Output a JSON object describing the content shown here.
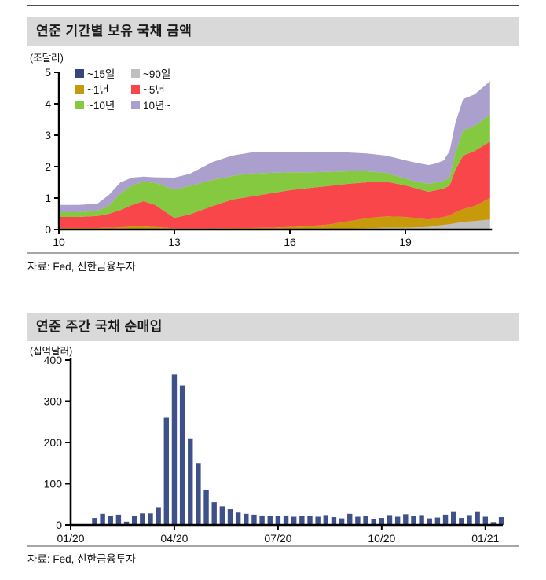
{
  "sections": [
    {
      "title": "연준 기간별 보유 국채 금액",
      "unit": "(조달러)",
      "source": "자료: Fed, 신한금융투자"
    },
    {
      "title": "연준 주간 국채 순매입",
      "unit": "(십억달러)",
      "source": "자료: Fed, 신한금융투자"
    }
  ],
  "colors": {
    "title_bar_bg": "#d9d9d9",
    "axis": "#000000",
    "divider": "#a6a6a6",
    "top_rule": "#4d4d4d"
  },
  "chart_data": [
    {
      "type": "area",
      "stacked": true,
      "title": "연준 기간별 보유 국채 금액",
      "ylabel": "조달러",
      "xlim": [
        10,
        21.25
      ],
      "ylim": [
        0,
        5
      ],
      "grid": false,
      "legend_position": "top-left",
      "xticks": [
        10,
        13,
        16,
        19
      ],
      "xtick_labels": [
        "10",
        "13",
        "16",
        "19"
      ],
      "yticks": [
        0,
        1,
        2,
        3,
        4,
        5
      ],
      "ytick_labels": [
        "0",
        "1",
        "2",
        "3",
        "4",
        "5"
      ],
      "x": [
        10,
        10.5,
        11,
        11.3,
        11.6,
        11.9,
        12.2,
        12.5,
        13,
        13.4,
        14,
        14.5,
        15,
        15.5,
        16,
        16.5,
        17,
        17.5,
        18,
        18.5,
        19,
        19.3,
        19.6,
        19.8,
        20.0,
        20.15,
        20.3,
        20.5,
        20.8,
        21.2
      ],
      "series": [
        {
          "key": "le15d",
          "name": "~15일",
          "color": "#35477a",
          "values": [
            0.01,
            0.01,
            0.01,
            0.01,
            0.01,
            0.01,
            0.01,
            0.01,
            0.01,
            0.01,
            0.01,
            0.01,
            0.01,
            0.01,
            0.01,
            0.01,
            0.01,
            0.01,
            0.01,
            0.01,
            0.01,
            0.01,
            0.02,
            0.02,
            0.02,
            0.02,
            0.02,
            0.02,
            0.02,
            0.02
          ]
        },
        {
          "key": "le90d",
          "name": "~90일",
          "color": "#bfbfbf",
          "values": [
            0,
            0,
            0,
            0,
            0,
            0,
            0,
            0,
            0,
            0,
            0,
            0,
            0,
            0,
            0,
            0,
            0,
            0.01,
            0.03,
            0.05,
            0.05,
            0.06,
            0.06,
            0.1,
            0.13,
            0.15,
            0.18,
            0.22,
            0.25,
            0.3
          ]
        },
        {
          "key": "le1y",
          "name": "~1년",
          "color": "#c79a0b",
          "values": [
            0.04,
            0.04,
            0.04,
            0.05,
            0.06,
            0.09,
            0.09,
            0.07,
            0.03,
            0.03,
            0.03,
            0.04,
            0.04,
            0.05,
            0.07,
            0.1,
            0.15,
            0.24,
            0.32,
            0.36,
            0.34,
            0.29,
            0.24,
            0.24,
            0.25,
            0.28,
            0.35,
            0.41,
            0.48,
            0.68
          ]
        },
        {
          "key": "le5y",
          "name": "~5년",
          "color": "#f9464a",
          "values": [
            0.35,
            0.35,
            0.38,
            0.44,
            0.55,
            0.68,
            0.8,
            0.7,
            0.33,
            0.44,
            0.71,
            0.9,
            1.0,
            1.09,
            1.17,
            1.21,
            1.22,
            1.19,
            1.14,
            1.1,
            1.0,
            0.94,
            0.88,
            0.89,
            0.9,
            0.95,
            1.35,
            1.7,
            1.75,
            1.8
          ]
        },
        {
          "key": "le10y",
          "name": "~10년",
          "color": "#85c940",
          "values": [
            0.15,
            0.15,
            0.17,
            0.25,
            0.53,
            0.62,
            0.62,
            0.7,
            0.9,
            0.9,
            0.83,
            0.75,
            0.73,
            0.65,
            0.57,
            0.5,
            0.45,
            0.4,
            0.35,
            0.28,
            0.22,
            0.22,
            0.25,
            0.25,
            0.25,
            0.25,
            0.55,
            0.8,
            0.8,
            0.85
          ]
        },
        {
          "key": "gt10y",
          "name": "10년~",
          "color": "#aba0cd",
          "values": [
            0.23,
            0.23,
            0.22,
            0.35,
            0.35,
            0.25,
            0.16,
            0.18,
            0.38,
            0.39,
            0.57,
            0.65,
            0.67,
            0.65,
            0.63,
            0.63,
            0.62,
            0.6,
            0.57,
            0.55,
            0.58,
            0.6,
            0.6,
            0.6,
            0.65,
            0.85,
            0.95,
            1.0,
            1.0,
            1.07
          ]
        }
      ]
    },
    {
      "type": "bar",
      "title": "연준 주간 국채 순매입",
      "ylabel": "십억달러",
      "bar_color": "#3f5189",
      "ylim": [
        0,
        400
      ],
      "grid": false,
      "yticks": [
        0,
        100,
        200,
        300,
        400
      ],
      "ytick_labels": [
        "0",
        "100",
        "200",
        "300",
        "400"
      ],
      "xtick_weeks": [
        0,
        13,
        26,
        39,
        52
      ],
      "xtick_labels": [
        "01/20",
        "04/20",
        "07/20",
        "10/20",
        "01/21"
      ],
      "values": [
        0,
        0,
        0,
        17,
        27,
        22,
        25,
        8,
        22,
        28,
        28,
        43,
        260,
        365,
        338,
        210,
        150,
        85,
        55,
        45,
        38,
        30,
        27,
        25,
        23,
        22,
        21,
        23,
        20,
        22,
        21,
        20,
        24,
        19,
        16,
        27,
        20,
        21,
        14,
        17,
        24,
        20,
        26,
        22,
        24,
        16,
        18,
        25,
        33,
        17,
        24,
        33,
        20,
        7,
        19
      ]
    }
  ]
}
